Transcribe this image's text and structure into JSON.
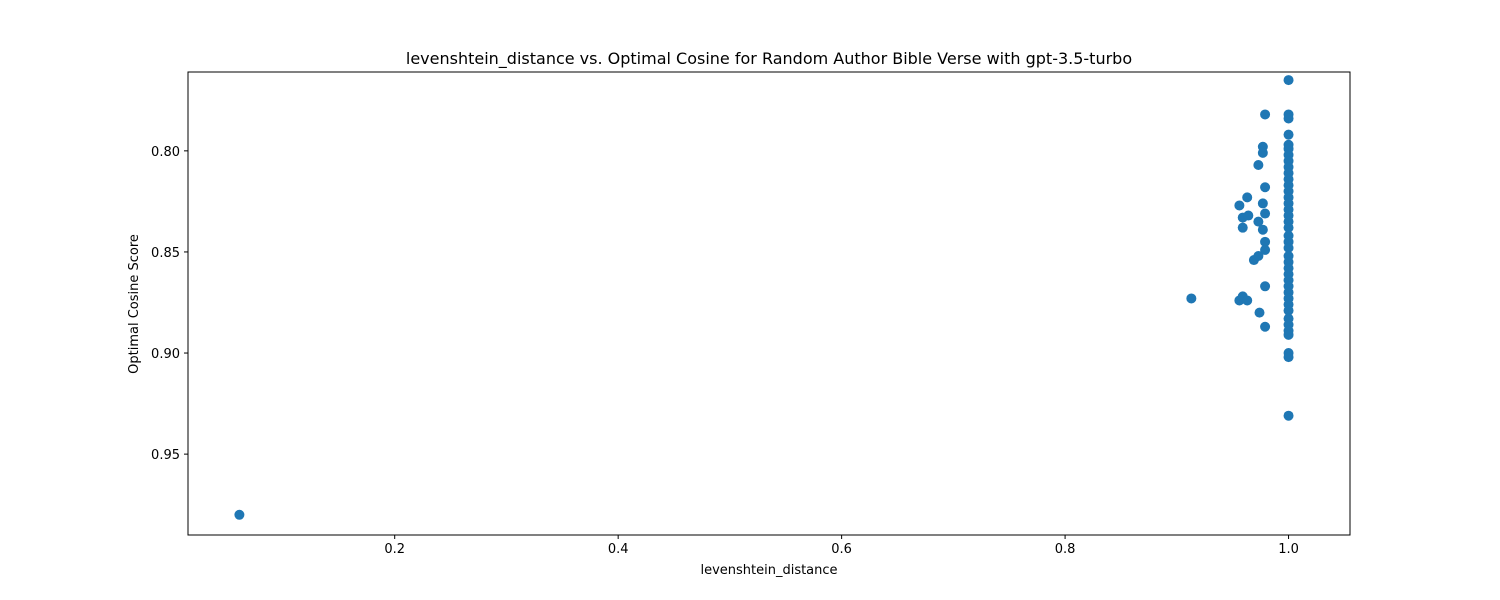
{
  "chart_data": {
    "type": "scatter",
    "title": "levenshtein_distance vs. Optimal Cosine for Random Author Bible Verse with gpt-3.5-turbo",
    "xlabel": "levenshtein_distance",
    "ylabel": "Optimal Cosine Score",
    "xlim": [
      0.015,
      1.055
    ],
    "ylim": [
      0.761,
      0.99
    ],
    "y_inverted": true,
    "grid": false,
    "x_ticks": [
      0.2,
      0.4,
      0.6,
      0.8,
      1.0
    ],
    "x_tick_labels": [
      "0.2",
      "0.4",
      "0.6",
      "0.8",
      "1.0"
    ],
    "y_ticks": [
      0.8,
      0.85,
      0.9,
      0.95
    ],
    "y_tick_labels": [
      "0.80",
      "0.85",
      "0.90",
      "0.95"
    ],
    "marker_color": "#1f77b4",
    "points": [
      [
        0.061,
        0.98
      ],
      [
        0.913,
        0.873
      ],
      [
        0.956,
        0.874
      ],
      [
        0.959,
        0.872
      ],
      [
        0.963,
        0.874
      ],
      [
        0.956,
        0.827
      ],
      [
        0.959,
        0.833
      ],
      [
        0.959,
        0.838
      ],
      [
        0.963,
        0.823
      ],
      [
        0.964,
        0.832
      ],
      [
        0.969,
        0.854
      ],
      [
        0.973,
        0.852
      ],
      [
        0.973,
        0.835
      ],
      [
        0.973,
        0.807
      ],
      [
        0.974,
        0.88
      ],
      [
        0.977,
        0.801
      ],
      [
        0.977,
        0.798
      ],
      [
        0.977,
        0.826
      ],
      [
        0.977,
        0.839
      ],
      [
        0.979,
        0.782
      ],
      [
        0.979,
        0.818
      ],
      [
        0.979,
        0.831
      ],
      [
        0.979,
        0.845
      ],
      [
        0.979,
        0.849
      ],
      [
        0.979,
        0.867
      ],
      [
        0.979,
        0.887
      ],
      [
        1.0,
        0.765
      ],
      [
        1.0,
        0.782
      ],
      [
        1.0,
        0.784
      ],
      [
        1.0,
        0.792
      ],
      [
        1.0,
        0.797
      ],
      [
        1.0,
        0.799
      ],
      [
        1.0,
        0.802
      ],
      [
        1.0,
        0.805
      ],
      [
        1.0,
        0.808
      ],
      [
        1.0,
        0.811
      ],
      [
        1.0,
        0.814
      ],
      [
        1.0,
        0.817
      ],
      [
        1.0,
        0.82
      ],
      [
        1.0,
        0.823
      ],
      [
        1.0,
        0.826
      ],
      [
        1.0,
        0.829
      ],
      [
        1.0,
        0.832
      ],
      [
        1.0,
        0.835
      ],
      [
        1.0,
        0.838
      ],
      [
        1.0,
        0.842
      ],
      [
        1.0,
        0.845
      ],
      [
        1.0,
        0.848
      ],
      [
        1.0,
        0.852
      ],
      [
        1.0,
        0.855
      ],
      [
        1.0,
        0.858
      ],
      [
        1.0,
        0.861
      ],
      [
        1.0,
        0.864
      ],
      [
        1.0,
        0.867
      ],
      [
        1.0,
        0.87
      ],
      [
        1.0,
        0.873
      ],
      [
        1.0,
        0.876
      ],
      [
        1.0,
        0.879
      ],
      [
        1.0,
        0.883
      ],
      [
        1.0,
        0.886
      ],
      [
        1.0,
        0.889
      ],
      [
        1.0,
        0.891
      ],
      [
        1.0,
        0.9
      ],
      [
        1.0,
        0.902
      ],
      [
        1.0,
        0.931
      ]
    ]
  }
}
